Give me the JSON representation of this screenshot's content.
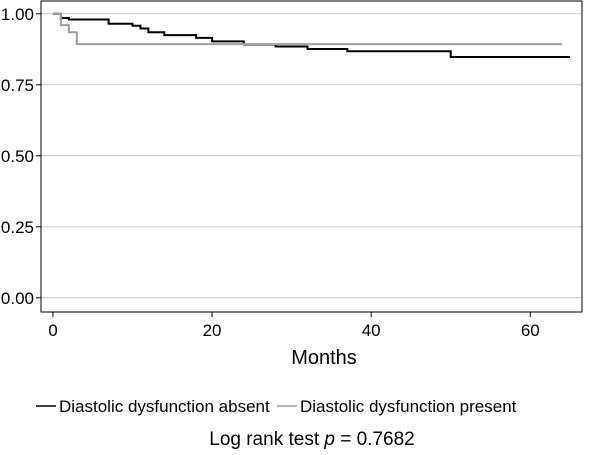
{
  "chart_data": {
    "type": "line",
    "step": true,
    "xlabel": "Months",
    "ylabel": "",
    "xlim": [
      -1.5,
      66.5
    ],
    "ylim": [
      -0.05,
      1.045
    ],
    "grid": "horizontal",
    "x_ticks": [
      0,
      20,
      40,
      60
    ],
    "x_tick_labels": [
      "0",
      "20",
      "40",
      "60"
    ],
    "y_ticks": [
      0,
      0.25,
      0.5,
      0.75,
      1
    ],
    "y_tick_labels": [
      "0.00",
      "0.25",
      "0.50",
      "0.75",
      "1.00"
    ],
    "legend_position": "bottom",
    "series": [
      {
        "name": "Diastolic dysfunction absent",
        "color": "#000000",
        "x": [
          0,
          1,
          2,
          7,
          10,
          11,
          12,
          14,
          18,
          20,
          24,
          28,
          32,
          37,
          50,
          65
        ],
        "y": [
          1.0,
          0.985,
          0.98,
          0.965,
          0.958,
          0.948,
          0.935,
          0.925,
          0.915,
          0.903,
          0.892,
          0.885,
          0.876,
          0.868,
          0.848,
          0.848
        ]
      },
      {
        "name": "Diastolic dysfunction present",
        "color": "#a0a0a0",
        "x": [
          0,
          1,
          2,
          3,
          64
        ],
        "y": [
          1.0,
          0.96,
          0.935,
          0.893,
          0.893
        ]
      }
    ],
    "annotation": {
      "prefix": "Log rank test ",
      "italic": "p",
      "suffix": " = 0.7682"
    }
  }
}
